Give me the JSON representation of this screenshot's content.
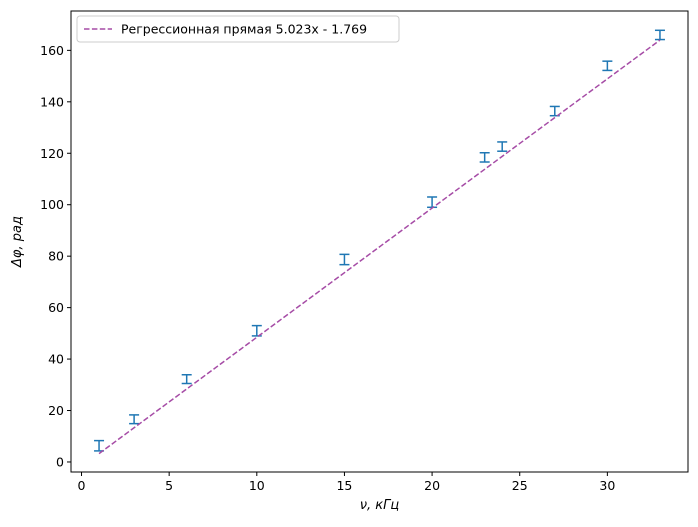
{
  "chart_data": {
    "type": "scatter",
    "xlabel": "ν, кГц",
    "ylabel": "Δφ, рад",
    "xlim": [
      -0.6,
      34.6
    ],
    "ylim": [
      -3.9,
      175.3
    ],
    "xticks": [
      0,
      5,
      10,
      15,
      20,
      25,
      30
    ],
    "yticks": [
      0,
      20,
      40,
      60,
      80,
      100,
      120,
      140,
      160
    ],
    "grid": false,
    "legend_position": "top-left",
    "colors": {
      "errorbar": "#1f77b4",
      "fit": "#a64ca6"
    },
    "series": [
      {
        "kind": "errorbar",
        "x": [
          1,
          3,
          6,
          10,
          15,
          20,
          23,
          24,
          27,
          30,
          33
        ],
        "y": [
          6.3,
          16.6,
          32.2,
          51.0,
          78.7,
          101.0,
          118.4,
          122.6,
          136.4,
          154.0,
          166.0
        ],
        "yerr": [
          2.0,
          1.7,
          1.7,
          2.0,
          2.0,
          2.0,
          1.8,
          1.8,
          1.8,
          1.8,
          1.8
        ]
      },
      {
        "kind": "line",
        "name": "Регрессионная прямая 5.023x - 1.769",
        "slope": 5.023,
        "intercept": -1.769,
        "x_range": [
          1,
          33
        ],
        "style": "dashed"
      }
    ]
  }
}
